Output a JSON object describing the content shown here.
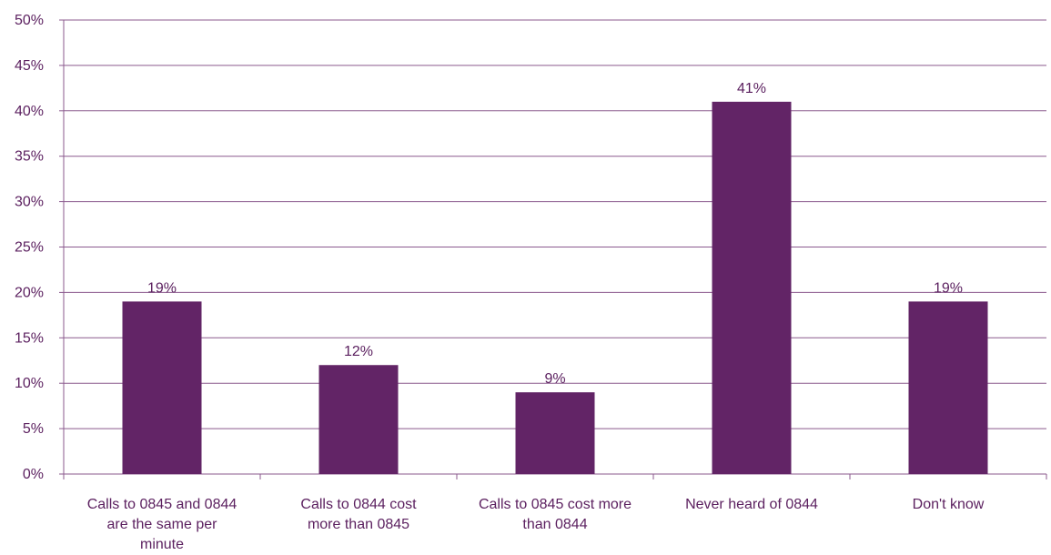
{
  "chart_data": {
    "type": "bar",
    "categories": [
      [
        "Calls to 0845  and 0844",
        "are the same per",
        "minute"
      ],
      [
        "Calls  to 0844 cost",
        "more than 0845"
      ],
      [
        "Calls to 0845  cost more",
        "than 0844"
      ],
      [
        "Never heard  of 0844"
      ],
      [
        "Don't know"
      ]
    ],
    "values": [
      19,
      12,
      9,
      41,
      19
    ],
    "data_labels": [
      "19%",
      "12%",
      "9%",
      "41%",
      "19%"
    ],
    "y_ticks": [
      "0%",
      "5%",
      "10%",
      "15%",
      "20%",
      "25%",
      "30%",
      "35%",
      "40%",
      "45%",
      "50%"
    ],
    "ylim": [
      0,
      50
    ],
    "grid": true,
    "colors": {
      "bar": "#622466",
      "grid": "#8b5a8e",
      "text": "#5c2160"
    }
  }
}
